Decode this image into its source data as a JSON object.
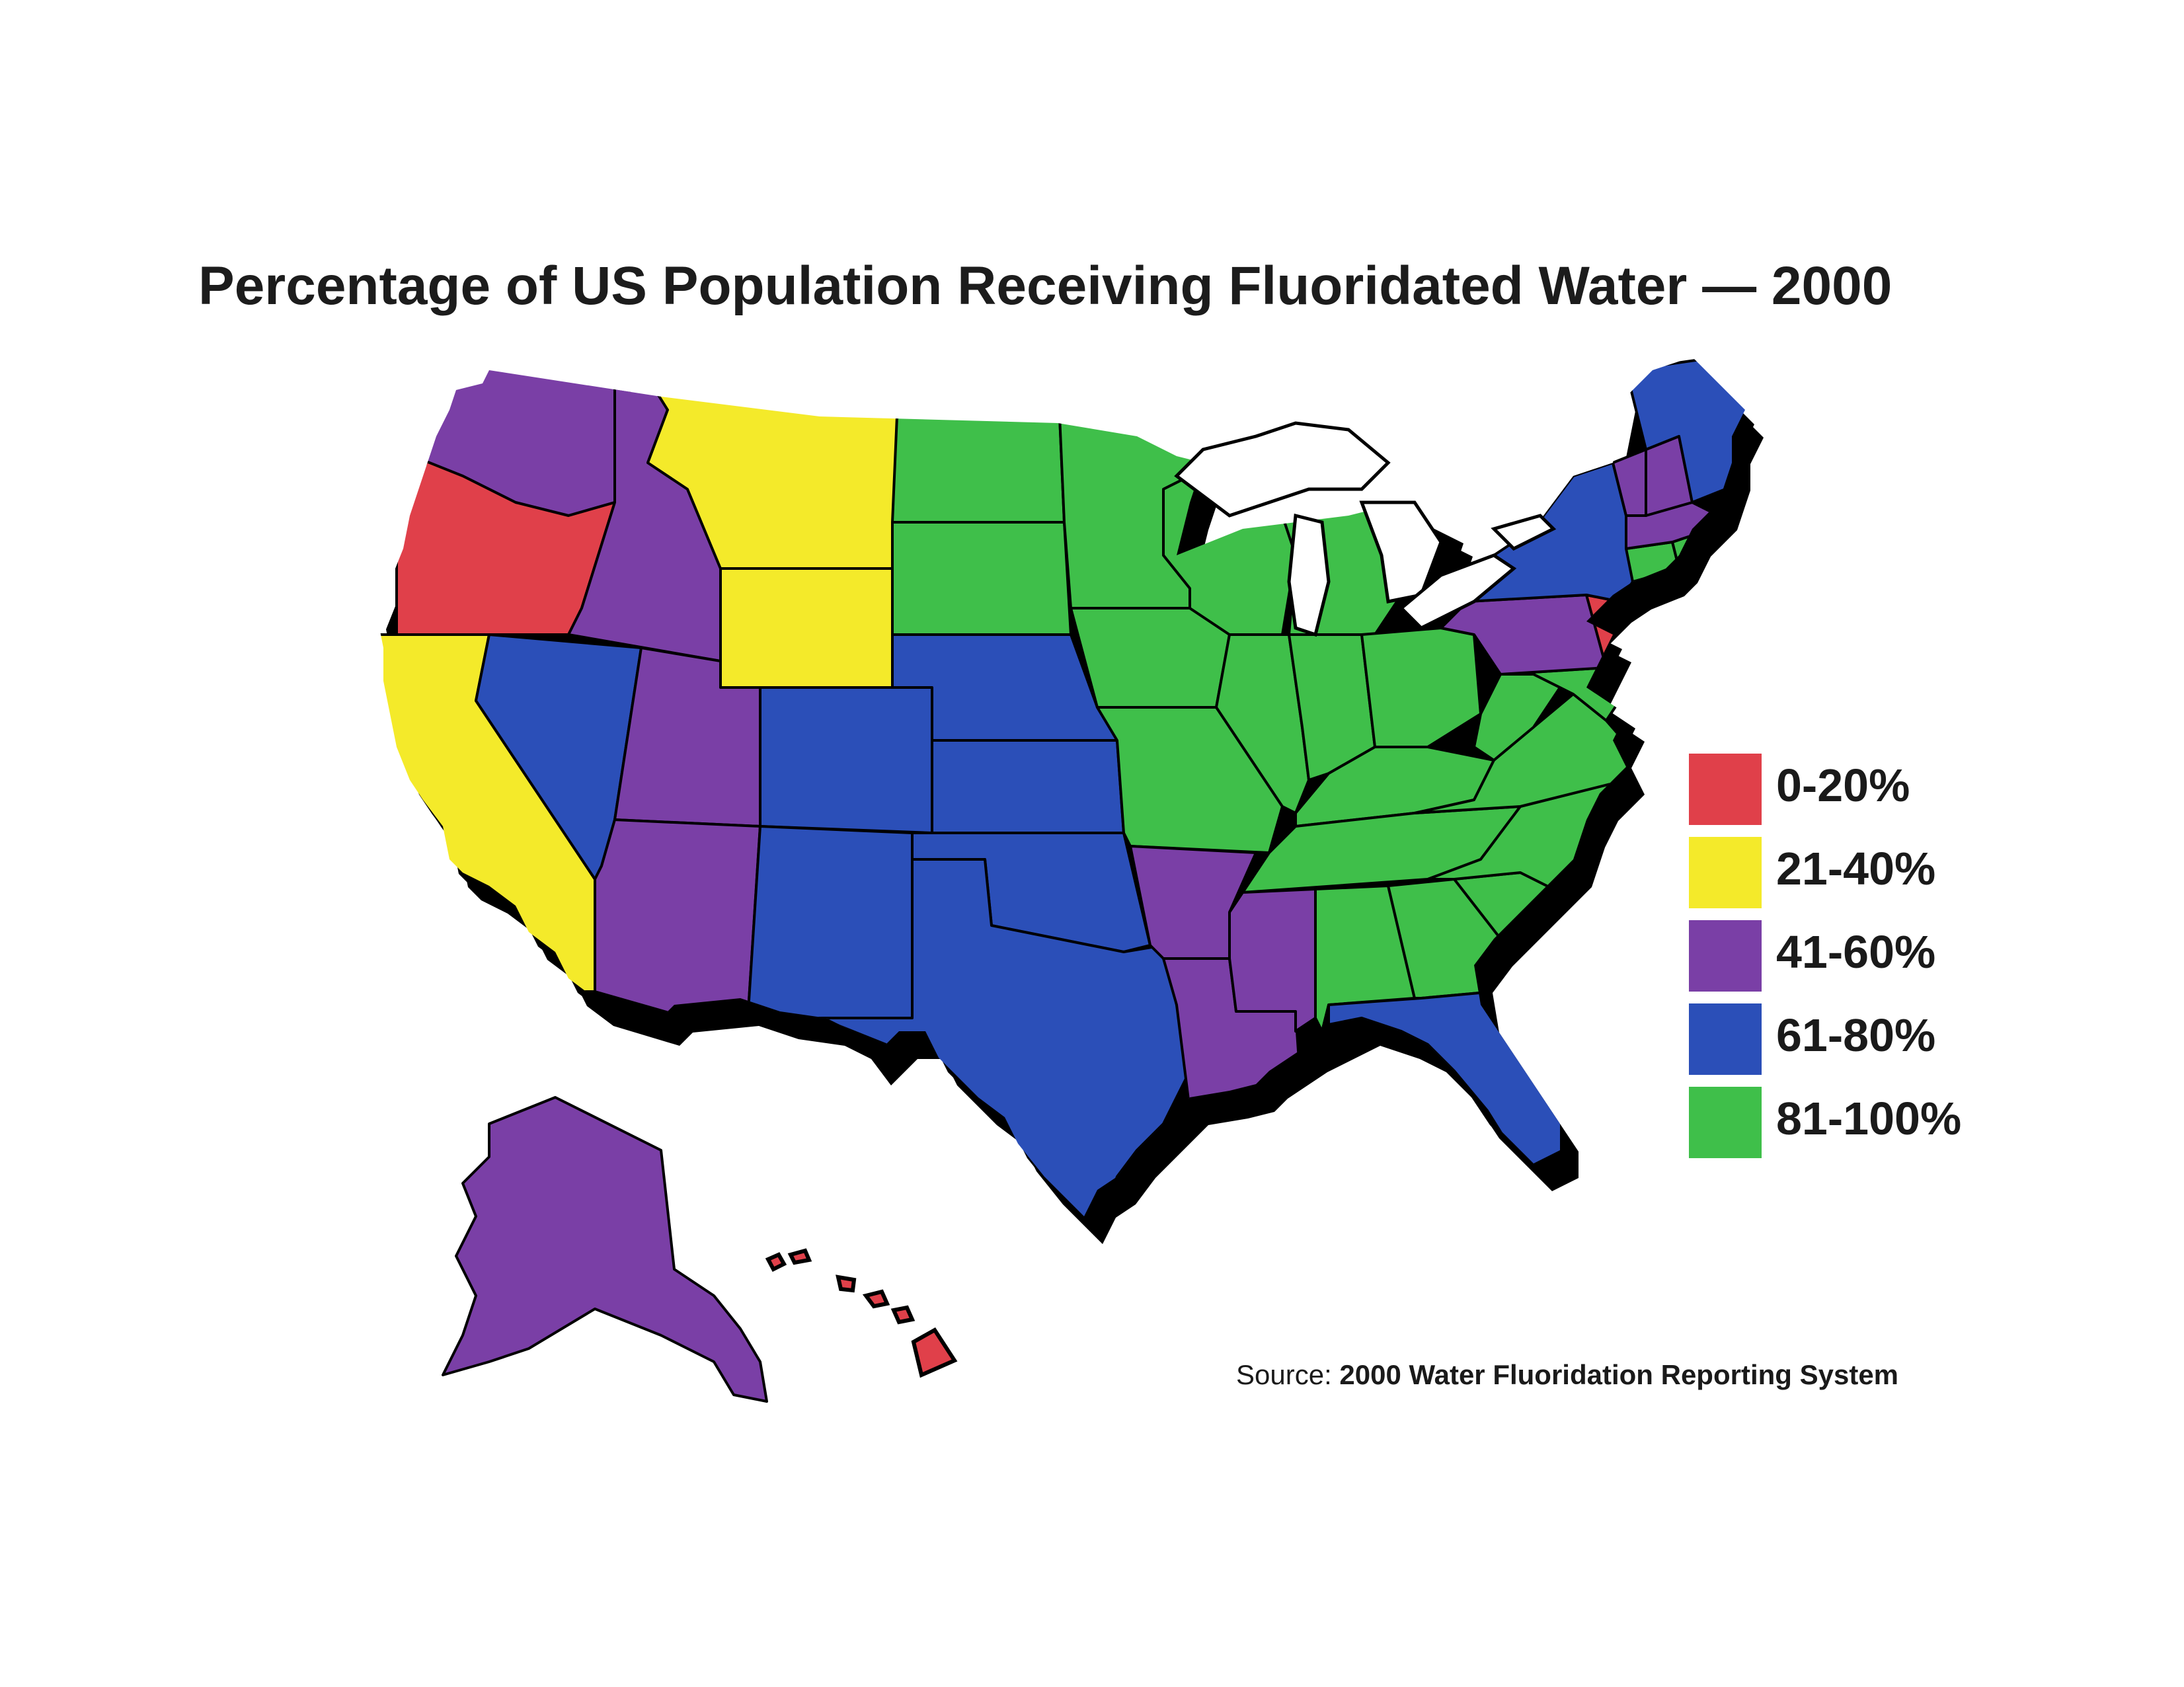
{
  "title": "Percentage of US Population Receiving Fluoridated Water — 2000",
  "colors": {
    "0-20%": "#e0404a",
    "21-40%": "#f4ea2a",
    "41-60%": "#7a3fa6",
    "61-80%": "#2b4fb8",
    "81-100%": "#3fbf4a",
    "lakes": "#ffffff",
    "shadow": "#000000"
  },
  "legend": {
    "items": [
      {
        "label": "0-20%",
        "color": "#e0404a"
      },
      {
        "label": "21-40%",
        "color": "#f4ea2a"
      },
      {
        "label": "41-60%",
        "color": "#7a3fa6"
      },
      {
        "label": "61-80%",
        "color": "#2b4fb8"
      },
      {
        "label": "81-100%",
        "color": "#3fbf4a"
      }
    ]
  },
  "source": {
    "prefix": "Source:",
    "text": "2000 Water Fluoridation Reporting System"
  },
  "states": [
    {
      "name": "WA",
      "class": "41-60%"
    },
    {
      "name": "OR",
      "class": "0-20%"
    },
    {
      "name": "CA",
      "class": "21-40%"
    },
    {
      "name": "ID",
      "class": "41-60%"
    },
    {
      "name": "NV",
      "class": "61-80%"
    },
    {
      "name": "MT",
      "class": "21-40%"
    },
    {
      "name": "WY",
      "class": "21-40%"
    },
    {
      "name": "UT",
      "class": "41-60%"
    },
    {
      "name": "AZ",
      "class": "41-60%"
    },
    {
      "name": "CO",
      "class": "61-80%"
    },
    {
      "name": "NM",
      "class": "61-80%"
    },
    {
      "name": "ND",
      "class": "81-100%"
    },
    {
      "name": "SD",
      "class": "81-100%"
    },
    {
      "name": "NE",
      "class": "61-80%"
    },
    {
      "name": "KS",
      "class": "61-80%"
    },
    {
      "name": "OK",
      "class": "61-80%"
    },
    {
      "name": "TX",
      "class": "61-80%"
    },
    {
      "name": "MN",
      "class": "81-100%"
    },
    {
      "name": "IA",
      "class": "81-100%"
    },
    {
      "name": "MO",
      "class": "81-100%"
    },
    {
      "name": "AR",
      "class": "41-60%"
    },
    {
      "name": "LA",
      "class": "41-60%"
    },
    {
      "name": "WI",
      "class": "81-100%"
    },
    {
      "name": "IL",
      "class": "81-100%"
    },
    {
      "name": "MI",
      "class": "81-100%"
    },
    {
      "name": "IN",
      "class": "81-100%"
    },
    {
      "name": "OH",
      "class": "81-100%"
    },
    {
      "name": "KY",
      "class": "81-100%"
    },
    {
      "name": "TN",
      "class": "81-100%"
    },
    {
      "name": "MS",
      "class": "41-60%"
    },
    {
      "name": "AL",
      "class": "81-100%"
    },
    {
      "name": "GA",
      "class": "81-100%"
    },
    {
      "name": "FL",
      "class": "61-80%"
    },
    {
      "name": "SC",
      "class": "81-100%"
    },
    {
      "name": "NC",
      "class": "81-100%"
    },
    {
      "name": "VA",
      "class": "81-100%"
    },
    {
      "name": "WV",
      "class": "81-100%"
    },
    {
      "name": "MD",
      "class": "81-100%"
    },
    {
      "name": "DE",
      "class": "81-100%"
    },
    {
      "name": "PA",
      "class": "41-60%"
    },
    {
      "name": "NJ",
      "class": "0-20%"
    },
    {
      "name": "NY",
      "class": "61-80%"
    },
    {
      "name": "CT",
      "class": "81-100%"
    },
    {
      "name": "RI",
      "class": "81-100%"
    },
    {
      "name": "MA",
      "class": "41-60%"
    },
    {
      "name": "VT",
      "class": "41-60%"
    },
    {
      "name": "NH",
      "class": "41-60%"
    },
    {
      "name": "ME",
      "class": "61-80%"
    },
    {
      "name": "AK",
      "class": "41-60%"
    },
    {
      "name": "HI",
      "class": "0-20%"
    }
  ]
}
